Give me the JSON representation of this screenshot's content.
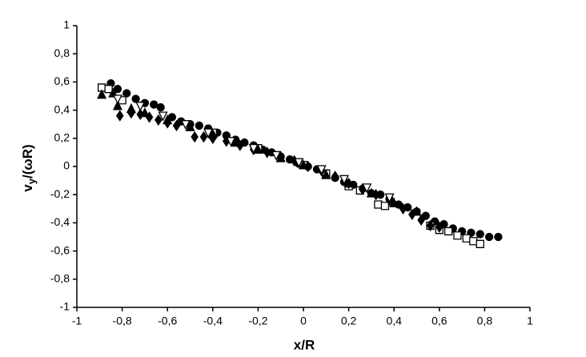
{
  "chart_data": {
    "type": "scatter",
    "x_label": "x/R",
    "y_label": "v",
    "y_label_sub": "y",
    "y_label_rest": "/(ωR)",
    "xlim": [
      -1,
      1
    ],
    "ylim": [
      -1,
      1
    ],
    "xticks": [
      -1,
      {
        "value": -0.8,
        "label": "-0,8"
      },
      {
        "value": -0.6,
        "label": "-0,6"
      },
      {
        "value": -0.4,
        "label": "-0,4"
      },
      {
        "value": -0.2,
        "label": "-0,2"
      },
      0,
      {
        "value": 0.2,
        "label": "0,2"
      },
      {
        "value": 0.4,
        "label": "0,4"
      },
      {
        "value": 0.6,
        "label": "0,6"
      },
      {
        "value": 0.8,
        "label": "0,8"
      },
      1
    ],
    "yticks": [
      -1,
      {
        "value": -0.8,
        "label": "-0,8"
      },
      {
        "value": -0.6,
        "label": "-0,6"
      },
      {
        "value": -0.4,
        "label": "-0,4"
      },
      {
        "value": -0.2,
        "label": "-0,2"
      },
      0,
      {
        "value": 0.2,
        "label": "0,2"
      },
      {
        "value": 0.4,
        "label": "0,4"
      },
      {
        "value": 0.6,
        "label": "0,6"
      },
      {
        "value": 0.8,
        "label": "0,8"
      },
      1
    ],
    "grid": false,
    "series": [
      {
        "marker": "circle",
        "filled": true,
        "color": "#000000",
        "x": [
          -0.85,
          -0.82,
          -0.78,
          -0.74,
          -0.7,
          -0.66,
          -0.63,
          -0.58,
          -0.54,
          -0.5,
          -0.46,
          -0.42,
          -0.38,
          -0.34,
          -0.3,
          -0.26,
          -0.22,
          -0.18,
          -0.14,
          -0.1,
          -0.06,
          -0.02,
          0.02,
          0.06,
          0.1,
          0.14,
          0.18,
          0.22,
          0.26,
          0.3,
          0.34,
          0.38,
          0.42,
          0.46,
          0.5,
          0.54,
          0.58,
          0.62,
          0.66,
          0.7,
          0.74,
          0.78,
          0.82,
          0.86
        ],
        "y": [
          0.59,
          0.55,
          0.52,
          0.48,
          0.45,
          0.44,
          0.42,
          0.35,
          0.32,
          0.3,
          0.29,
          0.27,
          0.24,
          0.22,
          0.19,
          0.17,
          0.15,
          0.12,
          0.1,
          0.07,
          0.05,
          0.02,
          0.0,
          -0.02,
          -0.05,
          -0.08,
          -0.11,
          -0.13,
          -0.16,
          -0.19,
          -0.2,
          -0.23,
          -0.27,
          -0.29,
          -0.32,
          -0.35,
          -0.39,
          -0.41,
          -0.44,
          -0.46,
          -0.47,
          -0.48,
          -0.5,
          -0.5
        ]
      },
      {
        "marker": "square",
        "filled": false,
        "color": "#000000",
        "x": [
          -0.89,
          -0.86,
          -0.8,
          -0.4,
          -0.2,
          0.0,
          0.1,
          0.2,
          0.25,
          0.33,
          0.36,
          0.56,
          0.6,
          0.64,
          0.68,
          0.72,
          0.75,
          0.78
        ],
        "y": [
          0.56,
          0.55,
          0.47,
          0.24,
          0.13,
          0.01,
          -0.05,
          -0.14,
          -0.17,
          -0.27,
          -0.28,
          -0.42,
          -0.45,
          -0.46,
          -0.49,
          -0.51,
          -0.53,
          -0.55
        ]
      },
      {
        "marker": "triangle",
        "filled": true,
        "color": "#000000",
        "x": [
          -0.89,
          -0.84,
          -0.82,
          -0.76,
          -0.7,
          -0.6,
          -0.5,
          -0.4,
          -0.3,
          -0.2,
          -0.1,
          0.0,
          0.1,
          0.2,
          0.3,
          0.4,
          0.5
        ],
        "y": [
          0.51,
          0.52,
          0.43,
          0.41,
          0.38,
          0.33,
          0.28,
          0.23,
          0.17,
          0.12,
          0.06,
          0.01,
          -0.06,
          -0.12,
          -0.19,
          -0.26,
          -0.32
        ]
      },
      {
        "marker": "diamond",
        "filled": true,
        "color": "#000000",
        "x": [
          -0.81,
          -0.76,
          -0.72,
          -0.68,
          -0.64,
          -0.6,
          -0.56,
          -0.48,
          -0.44,
          -0.4,
          -0.34,
          -0.28,
          -0.22,
          -0.16,
          -0.1,
          -0.04,
          0.02,
          0.08,
          0.14,
          0.2,
          0.26,
          0.32,
          0.38,
          0.44,
          0.48,
          0.52,
          0.56,
          0.6
        ],
        "y": [
          0.36,
          0.38,
          0.37,
          0.35,
          0.33,
          0.31,
          0.29,
          0.21,
          0.21,
          0.2,
          0.18,
          0.15,
          0.12,
          0.1,
          0.07,
          0.04,
          0.0,
          -0.03,
          -0.07,
          -0.12,
          -0.16,
          -0.2,
          -0.24,
          -0.3,
          -0.34,
          -0.38,
          -0.42,
          -0.43
        ]
      },
      {
        "marker": "triangle-down",
        "filled": false,
        "color": "#000000",
        "x": [
          -0.82,
          -0.72,
          -0.62,
          -0.52,
          -0.42,
          -0.32,
          -0.22,
          -0.12,
          -0.02,
          0.08,
          0.18,
          0.28,
          0.38
        ],
        "y": [
          0.48,
          0.43,
          0.36,
          0.3,
          0.24,
          0.18,
          0.13,
          0.08,
          0.03,
          -0.02,
          -0.09,
          -0.15,
          -0.22
        ]
      }
    ]
  }
}
